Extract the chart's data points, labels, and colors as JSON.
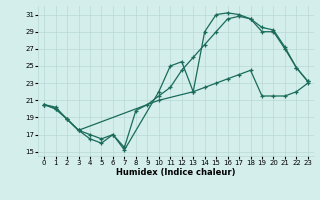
{
  "xlabel": "Humidex (Indice chaleur)",
  "bg_color": "#d4eeec",
  "grid_color": "#b8d8d4",
  "line_color": "#1a6b5a",
  "ylim": [
    14.5,
    32
  ],
  "yticks": [
    15,
    17,
    19,
    21,
    23,
    25,
    27,
    29,
    31
  ],
  "xlim": [
    -0.5,
    23.5
  ],
  "xticks": [
    0,
    1,
    2,
    3,
    4,
    5,
    6,
    7,
    8,
    9,
    10,
    11,
    12,
    13,
    14,
    15,
    16,
    17,
    18,
    19,
    20,
    21,
    22,
    23
  ],
  "curve_top": {
    "x": [
      0,
      1,
      2,
      3,
      4,
      5,
      6,
      7,
      10,
      11,
      12,
      13,
      14,
      15,
      16,
      17,
      18,
      19,
      20,
      21,
      22,
      23
    ],
    "y": [
      20.5,
      20.0,
      18.8,
      17.5,
      16.5,
      16.0,
      17.0,
      15.2,
      22.0,
      25.0,
      25.5,
      22.0,
      29.0,
      31.0,
      31.2,
      31.0,
      30.5,
      29.5,
      29.2,
      27.2,
      24.8,
      23.2
    ]
  },
  "curve_mid": {
    "x": [
      0,
      1,
      2,
      3,
      4,
      5,
      6,
      7,
      8,
      9,
      10,
      11,
      12,
      13,
      14,
      15,
      16,
      17,
      18,
      19,
      20,
      21,
      22,
      23
    ],
    "y": [
      20.5,
      20.0,
      18.8,
      17.5,
      17.0,
      16.5,
      17.0,
      15.5,
      19.8,
      20.5,
      21.5,
      22.5,
      24.5,
      26.0,
      27.5,
      29.0,
      30.5,
      30.8,
      30.5,
      29.0,
      29.0,
      27.0,
      24.8,
      23.2
    ]
  },
  "curve_diag": {
    "x": [
      0,
      1,
      2,
      3,
      10,
      13,
      14,
      15,
      16,
      17,
      18,
      19,
      20,
      21,
      22,
      23
    ],
    "y": [
      20.5,
      20.2,
      18.8,
      17.5,
      21.0,
      22.0,
      22.5,
      23.0,
      23.5,
      24.0,
      24.5,
      21.5,
      21.5,
      21.5,
      22.0,
      23.0
    ]
  }
}
